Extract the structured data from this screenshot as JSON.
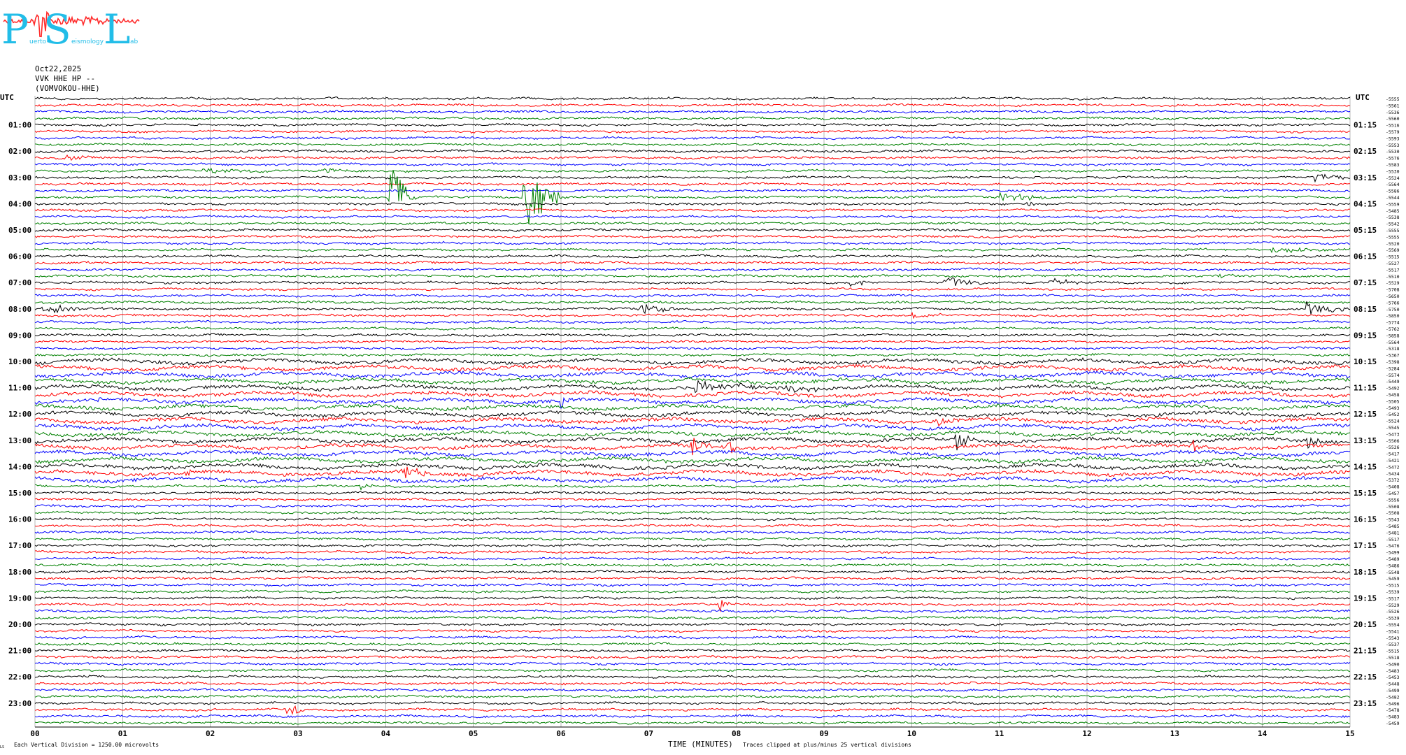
{
  "logo": {
    "letters": [
      "P",
      "S",
      "L"
    ],
    "subtitle_parts": [
      "uerto",
      "eismology",
      "ab"
    ]
  },
  "header": {
    "date": "Oct22,2025",
    "station": "VVK HHE HP --",
    "channel_name": "(VOMVOKOU-HHE)"
  },
  "footer": {
    "tiny_label": "LS",
    "vertical_division": "Each Vertical Division = 1250.00 microvolts",
    "xaxis_title": "TIME (MINUTES)",
    "clip_note": "Traces clipped at plus/minus 25 vertical divisions"
  },
  "colors": {
    "trace_cycle": [
      "#000000",
      "#ff0000",
      "#0000ff",
      "#008000"
    ],
    "grid": "#888888",
    "logo": "#22bde8",
    "logo_trace": "#ff2a2a"
  },
  "chart_data": {
    "type": "line",
    "subtype": "helicorder",
    "xlabel": "TIME (MINUTES)",
    "xlim": [
      0,
      15
    ],
    "x_ticks": [
      "00",
      "01",
      "02",
      "03",
      "04",
      "05",
      "06",
      "07",
      "08",
      "09",
      "10",
      "11",
      "12",
      "13",
      "14",
      "15"
    ],
    "left_axis_label": "UTC",
    "right_axis_label": "UTC",
    "left_labels": [
      "01:00",
      "02:00",
      "03:00",
      "04:00",
      "05:00",
      "06:00",
      "07:00",
      "08:00",
      "09:00",
      "10:00",
      "11:00",
      "12:00",
      "13:00",
      "14:00",
      "15:00",
      "16:00",
      "17:00",
      "18:00",
      "19:00",
      "20:00",
      "21:00",
      "22:00",
      "23:00"
    ],
    "right_labels": [
      "01:15",
      "02:15",
      "03:15",
      "04:15",
      "05:15",
      "06:15",
      "07:15",
      "08:15",
      "09:15",
      "10:15",
      "11:15",
      "12:15",
      "13:15",
      "14:15",
      "15:15",
      "16:15",
      "17:15",
      "18:15",
      "19:15",
      "20:15",
      "21:15",
      "22:15",
      "23:15"
    ],
    "trace_count": 96,
    "trace_offsets": [
      -5555,
      -5561,
      -5536,
      -5560,
      -5516,
      -5579,
      -5593,
      -5553,
      -5530,
      -5576,
      -5583,
      -5530,
      -5524,
      -5564,
      -5586,
      -5544,
      -5559,
      -5485,
      -5538,
      -5542,
      -5555,
      -5555,
      -5520,
      -5569,
      -5515,
      -5527,
      -5517,
      -5510,
      -5529,
      -5708,
      -5650,
      -5766,
      -5750,
      -5850,
      -5774,
      -5762,
      -5858,
      -5564,
      -5318,
      -5367,
      -5398,
      -5284,
      -5574,
      -5449,
      -5492,
      -5458,
      -5505,
      -5493,
      -5452,
      -5524,
      -5545,
      -5473,
      -5506,
      -5526,
      -5417,
      -5421,
      -5472,
      -5434,
      -5372,
      -5408,
      -5457,
      -5556,
      -5508,
      -5508,
      -5543,
      -5485,
      -5481,
      -5517,
      -5476,
      -5499,
      -5489,
      -5486,
      -5548,
      -5459,
      -5515,
      -5539,
      -5517,
      -5529,
      -5526,
      -5539,
      -5554,
      -5541,
      -5543,
      -5537,
      -5515,
      -5518,
      -5490,
      -5483,
      -5453,
      -5448,
      -5499,
      -5482,
      -5496,
      -5478,
      -5483,
      -5459
    ]
  }
}
